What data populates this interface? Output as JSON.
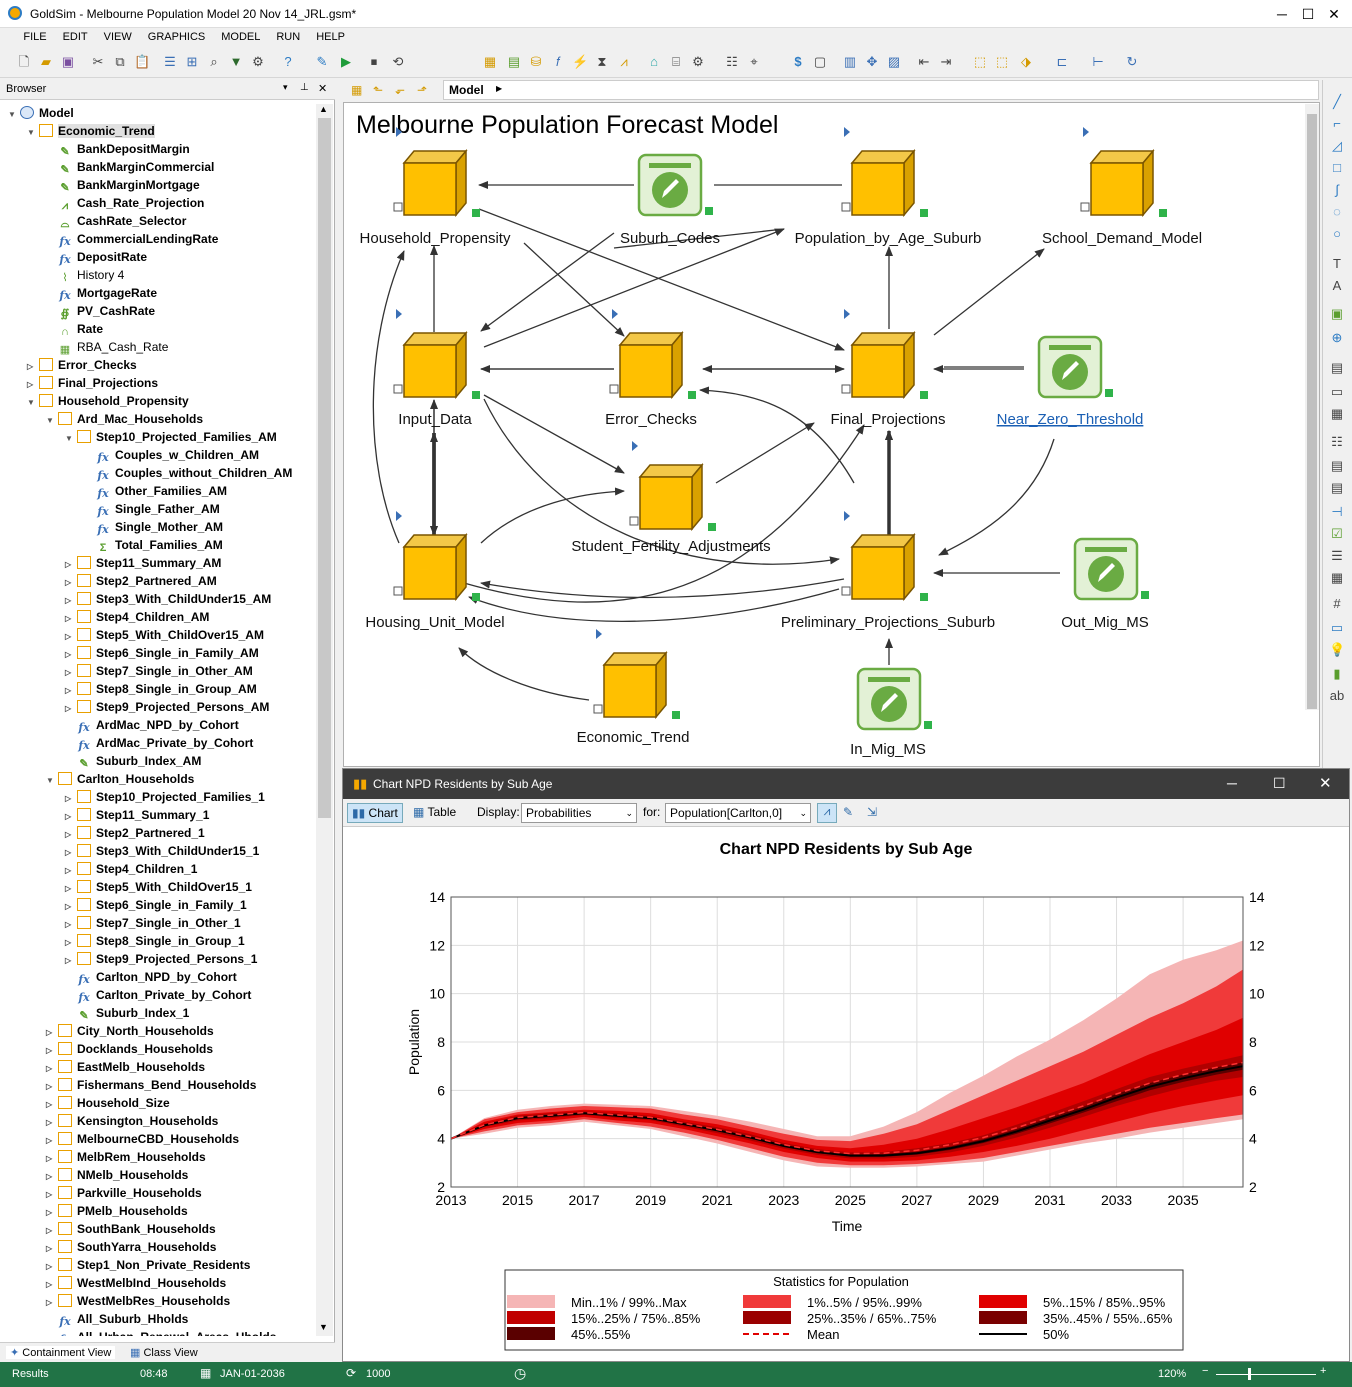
{
  "app": {
    "title": "GoldSim - Melbourne Population Model 20 Nov 14_JRL.gsm*"
  },
  "menu": [
    "FILE",
    "EDIT",
    "VIEW",
    "GRAPHICS",
    "MODEL",
    "RUN",
    "HELP"
  ],
  "browser": {
    "title": "Browser",
    "tabs": [
      "Containment View",
      "Class View"
    ],
    "tree": [
      {
        "l": 0,
        "t": "Model",
        "i": "mdl",
        "e": "v"
      },
      {
        "l": 1,
        "t": "Economic_Trend",
        "i": "cont",
        "e": "v",
        "sel": true
      },
      {
        "l": 2,
        "t": "BankDepositMargin",
        "i": "data"
      },
      {
        "l": 2,
        "t": "BankMarginCommercial",
        "i": "data"
      },
      {
        "l": 2,
        "t": "BankMarginMortgage",
        "i": "data"
      },
      {
        "l": 2,
        "t": "Cash_Rate_Projection",
        "i": "ts"
      },
      {
        "l": 2,
        "t": "CashRate_Selector",
        "i": "sel"
      },
      {
        "l": 2,
        "t": "CommercialLendingRate",
        "i": "fx"
      },
      {
        "l": 2,
        "t": "DepositRate",
        "i": "fx"
      },
      {
        "l": 2,
        "t": "History 4",
        "i": "hist",
        "nb": true
      },
      {
        "l": 2,
        "t": "MortgageRate",
        "i": "fx"
      },
      {
        "l": 2,
        "t": "PV_CashRate",
        "i": "pv"
      },
      {
        "l": 2,
        "t": "Rate",
        "i": "rate"
      },
      {
        "l": 2,
        "t": "RBA_Cash_Rate",
        "i": "tbl",
        "nb": true
      },
      {
        "l": 1,
        "t": "Error_Checks",
        "i": "cont",
        "e": ">"
      },
      {
        "l": 1,
        "t": "Final_Projections",
        "i": "cont",
        "e": ">"
      },
      {
        "l": 1,
        "t": "Household_Propensity",
        "i": "cont",
        "e": "v"
      },
      {
        "l": 2,
        "t": "Ard_Mac_Households",
        "i": "cont",
        "e": "v"
      },
      {
        "l": 3,
        "t": "Step10_Projected_Families_AM",
        "i": "cont",
        "e": "v"
      },
      {
        "l": 4,
        "t": "Couples_w_Children_AM",
        "i": "fx"
      },
      {
        "l": 4,
        "t": "Couples_without_Children_AM",
        "i": "fx"
      },
      {
        "l": 4,
        "t": "Other_Families_AM",
        "i": "fx"
      },
      {
        "l": 4,
        "t": "Single_Father_AM",
        "i": "fx"
      },
      {
        "l": 4,
        "t": "Single_Mother_AM",
        "i": "fx"
      },
      {
        "l": 4,
        "t": "Total_Families_AM",
        "i": "sum"
      },
      {
        "l": 3,
        "t": "Step11_Summary_AM",
        "i": "cont",
        "e": ">"
      },
      {
        "l": 3,
        "t": "Step2_Partnered_AM",
        "i": "cont",
        "e": ">"
      },
      {
        "l": 3,
        "t": "Step3_With_ChildUnder15_AM",
        "i": "cont",
        "e": ">"
      },
      {
        "l": 3,
        "t": "Step4_Children_AM",
        "i": "cont",
        "e": ">"
      },
      {
        "l": 3,
        "t": "Step5_With_ChildOver15_AM",
        "i": "cont",
        "e": ">"
      },
      {
        "l": 3,
        "t": "Step6_Single_in_Family_AM",
        "i": "cont",
        "e": ">"
      },
      {
        "l": 3,
        "t": "Step7_Single_in_Other_AM",
        "i": "cont",
        "e": ">"
      },
      {
        "l": 3,
        "t": "Step8_Single_in_Group_AM",
        "i": "cont",
        "e": ">"
      },
      {
        "l": 3,
        "t": "Step9_Projected_Persons_AM",
        "i": "cont",
        "e": ">"
      },
      {
        "l": 3,
        "t": "ArdMac_NPD_by_Cohort",
        "i": "fx"
      },
      {
        "l": 3,
        "t": "ArdMac_Private_by_Cohort",
        "i": "fx"
      },
      {
        "l": 3,
        "t": "Suburb_Index_AM",
        "i": "data"
      },
      {
        "l": 2,
        "t": "Carlton_Households",
        "i": "cont",
        "e": "v"
      },
      {
        "l": 3,
        "t": "Step10_Projected_Families_1",
        "i": "cont",
        "e": ">"
      },
      {
        "l": 3,
        "t": "Step11_Summary_1",
        "i": "cont",
        "e": ">"
      },
      {
        "l": 3,
        "t": "Step2_Partnered_1",
        "i": "cont",
        "e": ">"
      },
      {
        "l": 3,
        "t": "Step3_With_ChildUnder15_1",
        "i": "cont",
        "e": ">"
      },
      {
        "l": 3,
        "t": "Step4_Children_1",
        "i": "cont",
        "e": ">"
      },
      {
        "l": 3,
        "t": "Step5_With_ChildOver15_1",
        "i": "cont",
        "e": ">"
      },
      {
        "l": 3,
        "t": "Step6_Single_in_Family_1",
        "i": "cont",
        "e": ">"
      },
      {
        "l": 3,
        "t": "Step7_Single_in_Other_1",
        "i": "cont",
        "e": ">"
      },
      {
        "l": 3,
        "t": "Step8_Single_in_Group_1",
        "i": "cont",
        "e": ">"
      },
      {
        "l": 3,
        "t": "Step9_Projected_Persons_1",
        "i": "cont",
        "e": ">"
      },
      {
        "l": 3,
        "t": "Carlton_NPD_by_Cohort",
        "i": "fx"
      },
      {
        "l": 3,
        "t": "Carlton_Private_by_Cohort",
        "i": "fx"
      },
      {
        "l": 3,
        "t": "Suburb_Index_1",
        "i": "data"
      },
      {
        "l": 2,
        "t": "City_North_Households",
        "i": "cont",
        "e": ">"
      },
      {
        "l": 2,
        "t": "Docklands_Households",
        "i": "cont",
        "e": ">"
      },
      {
        "l": 2,
        "t": "EastMelb_Households",
        "i": "cont",
        "e": ">"
      },
      {
        "l": 2,
        "t": "Fishermans_Bend_Households",
        "i": "cont",
        "e": ">"
      },
      {
        "l": 2,
        "t": "Household_Size",
        "i": "cont",
        "e": ">"
      },
      {
        "l": 2,
        "t": "Kensington_Households",
        "i": "cont",
        "e": ">"
      },
      {
        "l": 2,
        "t": "MelbourneCBD_Households",
        "i": "cont",
        "e": ">"
      },
      {
        "l": 2,
        "t": "MelbRem_Households",
        "i": "cont",
        "e": ">"
      },
      {
        "l": 2,
        "t": "NMelb_Households",
        "i": "cont",
        "e": ">"
      },
      {
        "l": 2,
        "t": "Parkville_Households",
        "i": "cont",
        "e": ">"
      },
      {
        "l": 2,
        "t": "PMelb_Households",
        "i": "cont",
        "e": ">"
      },
      {
        "l": 2,
        "t": "SouthBank_Households",
        "i": "cont",
        "e": ">"
      },
      {
        "l": 2,
        "t": "SouthYarra_Households",
        "i": "cont",
        "e": ">"
      },
      {
        "l": 2,
        "t": "Step1_Non_Private_Residents",
        "i": "cont",
        "e": ">"
      },
      {
        "l": 2,
        "t": "WestMelbInd_Households",
        "i": "cont",
        "e": ">"
      },
      {
        "l": 2,
        "t": "WestMelbRes_Households",
        "i": "cont",
        "e": ">"
      },
      {
        "l": 2,
        "t": "All_Suburb_Hholds",
        "i": "fx"
      },
      {
        "l": 2,
        "t": "All_Urban_Renewal_Areas_Hholds",
        "i": "fx"
      }
    ]
  },
  "canvas": {
    "breadcrumb": "Model",
    "title": "Melbourne Population Forecast Model",
    "nodes": [
      {
        "id": "hp",
        "label": "Household_Propensity",
        "type": "container"
      },
      {
        "id": "sc",
        "label": "Suburb_Codes",
        "type": "data"
      },
      {
        "id": "pas",
        "label": "Population_by_Age_Suburb",
        "type": "container"
      },
      {
        "id": "sdm",
        "label": "School_Demand_Model",
        "type": "container"
      },
      {
        "id": "id",
        "label": "Input_Data",
        "type": "container"
      },
      {
        "id": "ec",
        "label": "Error_Checks",
        "type": "container"
      },
      {
        "id": "fp",
        "label": "Final_Projections",
        "type": "container"
      },
      {
        "id": "nzt",
        "label": "Near_Zero_Threshold",
        "type": "data",
        "link": true
      },
      {
        "id": "sfa",
        "label": "Student_Fertility_Adjustments",
        "type": "container"
      },
      {
        "id": "hum",
        "label": "Housing_Unit_Model",
        "type": "container"
      },
      {
        "id": "pps",
        "label": "Preliminary_Projections_Suburb",
        "type": "container"
      },
      {
        "id": "omm",
        "label": "Out_Mig_MS",
        "type": "data"
      },
      {
        "id": "et",
        "label": "Economic_Trend",
        "type": "container"
      },
      {
        "id": "imm",
        "label": "In_Mig_MS",
        "type": "data"
      }
    ]
  },
  "chartwin": {
    "title": "Chart NPD Residents by Sub Age",
    "chart_btn": "Chart",
    "table_btn": "Table",
    "display_label": "Display:",
    "display_value": "Probabilities",
    "for_label": "for:",
    "for_value": "Population[Carlton,0]"
  },
  "chart_data": {
    "type": "area",
    "title": "Chart NPD Residents by Sub Age",
    "xlabel": "Time",
    "ylabel": "Population",
    "xlim": [
      2013,
      2036.8
    ],
    "ylim": [
      2,
      14
    ],
    "xticks": [
      "2013",
      "2015",
      "2017",
      "2019",
      "2021",
      "2023",
      "2025",
      "2027",
      "2029",
      "2031",
      "2033",
      "2035"
    ],
    "yticks": [
      "2",
      "4",
      "6",
      "8",
      "10",
      "12",
      "14"
    ],
    "x": [
      2013,
      2014,
      2015,
      2016,
      2017,
      2018,
      2019,
      2020,
      2021,
      2022,
      2023,
      2024,
      2025,
      2026,
      2027,
      2028,
      2029,
      2030,
      2031,
      2032,
      2033,
      2034,
      2035,
      2036,
      2036.8
    ],
    "median": [
      4.0,
      4.55,
      4.85,
      4.95,
      5.05,
      4.95,
      4.85,
      4.6,
      4.35,
      4.05,
      3.7,
      3.45,
      3.3,
      3.3,
      3.4,
      3.6,
      3.9,
      4.3,
      4.75,
      5.2,
      5.7,
      6.15,
      6.5,
      6.8,
      7.0
    ],
    "mean": [
      4.0,
      4.57,
      4.87,
      4.97,
      5.08,
      4.98,
      4.88,
      4.63,
      4.38,
      4.08,
      3.75,
      3.5,
      3.38,
      3.4,
      3.52,
      3.75,
      4.05,
      4.45,
      4.9,
      5.35,
      5.85,
      6.3,
      6.65,
      6.95,
      7.15
    ],
    "bands": [
      {
        "lo": [
          4.0,
          4.2,
          4.45,
          4.55,
          4.7,
          4.55,
          4.4,
          4.1,
          3.8,
          3.45,
          3.1,
          2.85,
          2.8,
          2.8,
          2.85,
          2.95,
          3.05,
          3.3,
          3.55,
          3.8,
          4.0,
          4.25,
          4.45,
          4.65,
          4.8
        ],
        "hi": [
          4.0,
          4.85,
          5.2,
          5.35,
          5.45,
          5.4,
          5.35,
          5.15,
          4.95,
          4.7,
          4.4,
          4.1,
          4.1,
          4.5,
          5.1,
          5.9,
          6.6,
          7.4,
          8.1,
          8.9,
          9.8,
          10.8,
          11.4,
          11.8,
          12.2
        ],
        "fill": "#f5b5b5"
      },
      {
        "lo": [
          4.0,
          4.3,
          4.55,
          4.65,
          4.8,
          4.65,
          4.5,
          4.25,
          3.95,
          3.6,
          3.25,
          3.0,
          2.9,
          2.9,
          2.95,
          3.05,
          3.2,
          3.45,
          3.7,
          3.95,
          4.2,
          4.45,
          4.65,
          4.85,
          5.0
        ],
        "hi": [
          4.0,
          4.8,
          5.1,
          5.25,
          5.35,
          5.3,
          5.25,
          5.0,
          4.8,
          4.5,
          4.2,
          3.95,
          3.9,
          4.2,
          4.6,
          5.2,
          5.8,
          6.4,
          7.0,
          7.6,
          8.3,
          9.0,
          9.6,
          10.3,
          11.0
        ],
        "fill": "#f03a3a"
      },
      {
        "lo": [
          4.0,
          4.4,
          4.65,
          4.75,
          4.9,
          4.75,
          4.65,
          4.4,
          4.1,
          3.8,
          3.45,
          3.2,
          3.05,
          3.05,
          3.1,
          3.25,
          3.45,
          3.7,
          4.0,
          4.35,
          4.7,
          5.05,
          5.35,
          5.6,
          5.8
        ],
        "hi": [
          4.0,
          4.7,
          5.0,
          5.1,
          5.2,
          5.15,
          5.05,
          4.8,
          4.6,
          4.3,
          3.95,
          3.7,
          3.6,
          3.75,
          4.0,
          4.4,
          4.85,
          5.3,
          5.8,
          6.3,
          6.9,
          7.5,
          8.0,
          8.5,
          9.0
        ],
        "fill": "#e00000"
      },
      {
        "lo": [
          4.0,
          4.48,
          4.75,
          4.85,
          4.98,
          4.86,
          4.76,
          4.5,
          4.23,
          3.92,
          3.58,
          3.33,
          3.18,
          3.18,
          3.25,
          3.43,
          3.7,
          4.05,
          4.45,
          4.9,
          5.35,
          5.75,
          6.1,
          6.4,
          6.55
        ],
        "hi": [
          4.0,
          4.62,
          4.95,
          5.05,
          5.13,
          5.05,
          4.94,
          4.7,
          4.47,
          4.18,
          3.82,
          3.57,
          3.43,
          3.45,
          3.6,
          3.82,
          4.14,
          4.58,
          5.05,
          5.55,
          6.05,
          6.55,
          6.9,
          7.2,
          7.45
        ],
        "fill": "#b00000"
      },
      {
        "lo": [
          4.0,
          4.52,
          4.81,
          4.91,
          5.02,
          4.91,
          4.81,
          4.56,
          4.3,
          4.0,
          3.65,
          3.4,
          3.25,
          3.25,
          3.34,
          3.53,
          3.82,
          4.2,
          4.63,
          5.08,
          5.55,
          6.0,
          6.35,
          6.65,
          6.85
        ],
        "hi": [
          4.0,
          4.58,
          4.89,
          4.99,
          5.08,
          4.99,
          4.89,
          4.64,
          4.4,
          4.1,
          3.75,
          3.5,
          3.35,
          3.36,
          3.46,
          3.67,
          3.98,
          4.4,
          4.87,
          5.32,
          5.85,
          6.3,
          6.65,
          6.95,
          7.15
        ],
        "fill": "#5a0000"
      }
    ],
    "legend": {
      "title": "Statistics for Population",
      "items": [
        {
          "label": "Min..1% / 99%..Max",
          "color": "#f5b5b5",
          "kind": "box"
        },
        {
          "label": "1%..5% / 95%..99%",
          "color": "#f03a3a",
          "kind": "box"
        },
        {
          "label": "5%..15% / 85%..95%",
          "color": "#e00000",
          "kind": "box"
        },
        {
          "label": "15%..25% / 75%..85%",
          "color": "#c00000",
          "kind": "box"
        },
        {
          "label": "25%..35% / 65%..75%",
          "color": "#9a0000",
          "kind": "box"
        },
        {
          "label": "35%..45% / 55%..65%",
          "color": "#7a0000",
          "kind": "box"
        },
        {
          "label": "45%..55%",
          "color": "#5a0000",
          "kind": "box"
        },
        {
          "label": "Mean",
          "color": "#e00000",
          "kind": "dash"
        },
        {
          "label": "50%",
          "color": "#000000",
          "kind": "line"
        }
      ]
    }
  },
  "status": {
    "mode": "Results",
    "time": "08:48",
    "date": "JAN-01-2036",
    "realization": "1000",
    "zoom": "120%"
  }
}
